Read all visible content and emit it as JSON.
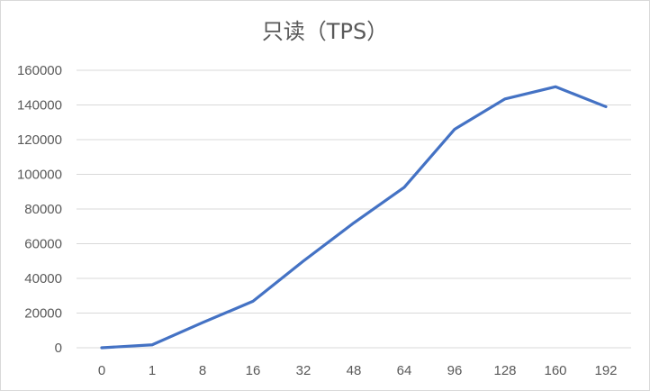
{
  "chart_data": {
    "type": "line",
    "title": "只读（TPS）",
    "xlabel": "",
    "ylabel": "",
    "categories": [
      "0",
      "1",
      "8",
      "16",
      "32",
      "48",
      "64",
      "96",
      "128",
      "160",
      "192"
    ],
    "series": [
      {
        "values": [
          0,
          1700,
          14500,
          26800,
          50000,
          72000,
          92500,
          126000,
          143500,
          150500,
          139000
        ],
        "color": "#4472c4"
      }
    ],
    "ylim": [
      0,
      160000
    ],
    "yticks": [
      "0",
      "20000",
      "40000",
      "60000",
      "80000",
      "100000",
      "120000",
      "140000",
      "160000"
    ],
    "grid": true,
    "legend": "none"
  }
}
